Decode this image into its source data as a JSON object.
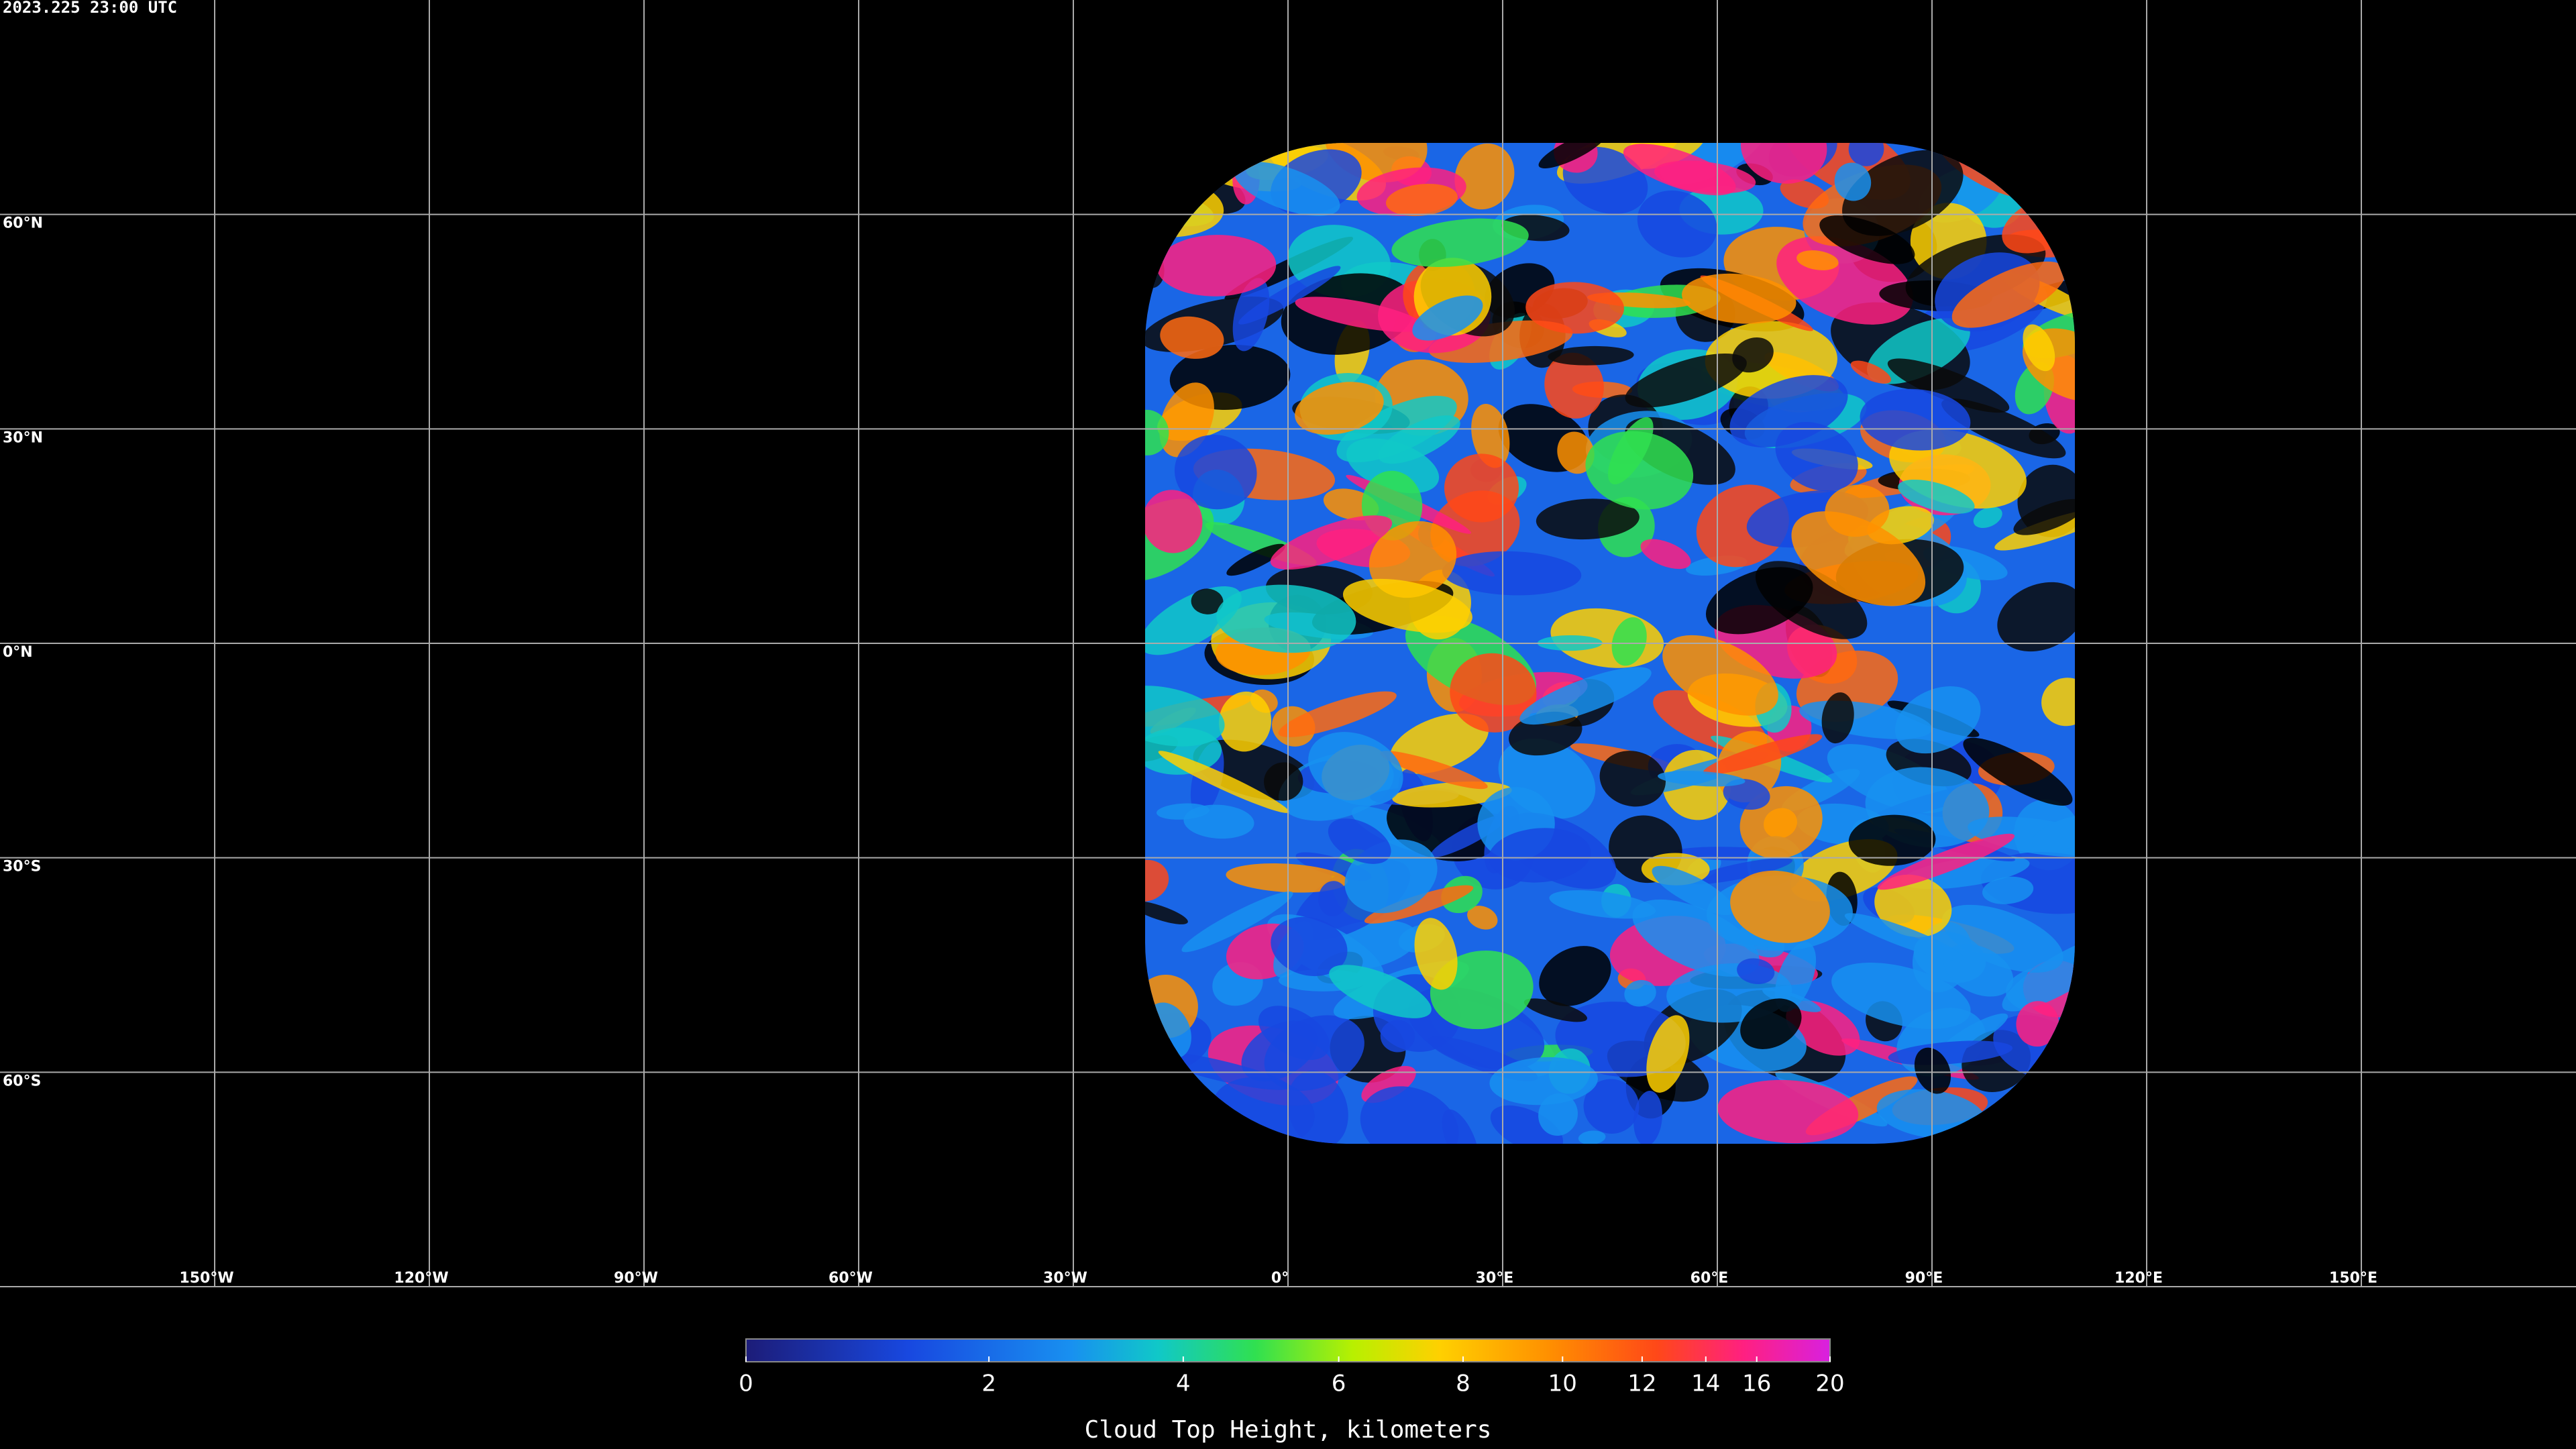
{
  "timestamp": "2023.225 23:00 UTC",
  "map": {
    "xlim": [
      -180,
      180
    ],
    "ylim": [
      -90,
      90
    ],
    "grid": true,
    "xticks": [
      {
        "value": -150,
        "label": "150°W"
      },
      {
        "value": -120,
        "label": "120°W"
      },
      {
        "value": -90,
        "label": "90°W"
      },
      {
        "value": -60,
        "label": "60°W"
      },
      {
        "value": -30,
        "label": "30°W"
      },
      {
        "value": 0,
        "label": "0°"
      },
      {
        "value": 30,
        "label": "30°E"
      },
      {
        "value": 60,
        "label": "60°E"
      },
      {
        "value": 90,
        "label": "90°E"
      },
      {
        "value": 120,
        "label": "120°E"
      },
      {
        "value": 150,
        "label": "150°E"
      }
    ],
    "yticks": [
      {
        "value": 60,
        "label": "60°N"
      },
      {
        "value": 30,
        "label": "30°N"
      },
      {
        "value": 0,
        "label": "0°N"
      },
      {
        "value": -30,
        "label": "30°S"
      },
      {
        "value": -60,
        "label": "60°S"
      }
    ]
  },
  "colorbar": {
    "label": "Cloud Top Height, kilometers",
    "lim": [
      0,
      20
    ],
    "scale": "exponential",
    "ticks": [
      0,
      2,
      4,
      6,
      8,
      10,
      12,
      14,
      16,
      20
    ]
  }
}
